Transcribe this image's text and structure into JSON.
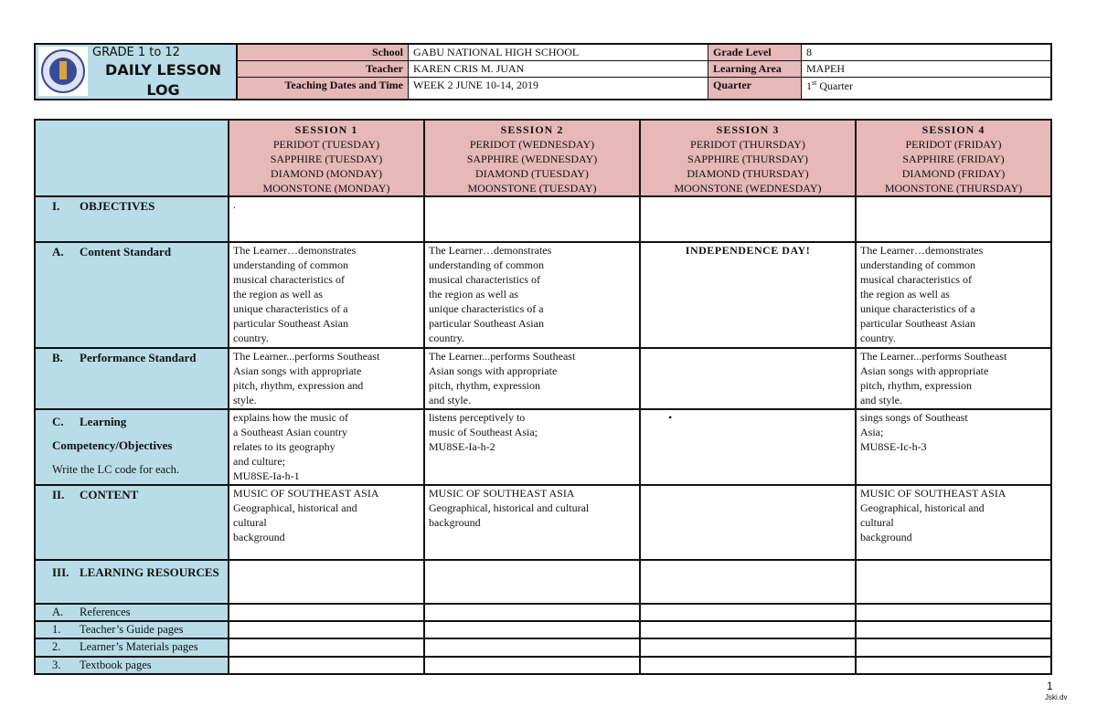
{
  "header": {
    "grade_range": "GRADE 1 to 12",
    "title": "DAILY LESSON LOG",
    "school_label": "School",
    "school": "GABU NATIONAL HIGH SCHOOL",
    "teacher_label": "Teacher",
    "teacher": "KAREN CRIS M. JUAN",
    "dates_label": "Teaching Dates and Time",
    "dates": "WEEK 2 JUNE 10-14, 2019",
    "grade_level_label": "Grade Level",
    "grade_level": "8",
    "learning_area_label": "Learning Area",
    "learning_area": "MAPEH",
    "quarter_label": "Quarter",
    "quarter_num": "1",
    "quarter_sup": "st",
    "quarter_text": " Quarter"
  },
  "sessions": [
    {
      "title": "SESSION 1",
      "schedule": "PERIDOT (TUESDAY)\nSAPPHIRE (TUESDAY)\nDIAMOND (MONDAY)\nMOONSTONE (MONDAY)"
    },
    {
      "title": "SESSION 2",
      "schedule": "PERIDOT (WEDNESDAY)\nSAPPHIRE (WEDNESDAY)\nDIAMOND (TUESDAY)\nMOONSTONE (TUESDAY)"
    },
    {
      "title": "SESSION 3",
      "schedule": "PERIDOT (THURSDAY)\nSAPPHIRE (THURSDAY)\nDIAMOND (THURSDAY)\nMOONSTONE (WEDNESDAY)"
    },
    {
      "title": "SESSION 4",
      "schedule": "PERIDOT (FRIDAY)\nSAPPHIRE (FRIDAY)\nDIAMOND (FRIDAY)\nMOONSTONE (THURSDAY)"
    }
  ],
  "rows": [
    {
      "num": "I.",
      "label": "OBJECTIVES",
      "cells": [
        ".",
        "",
        "",
        ""
      ]
    },
    {
      "num": "A.",
      "label": "Content Standard",
      "cells": [
        "The Learner…demonstrates\nunderstanding of common\nmusical characteristics of\nthe region as well as\nunique characteristics of a\nparticular Southeast Asian\ncountry.",
        "The Learner…demonstrates\nunderstanding of common\nmusical characteristics of\nthe region as well as\nunique characteristics of a\nparticular Southeast Asian\ncountry.",
        "INDEPENDENCE DAY!",
        "The Learner…demonstrates\nunderstanding of common\nmusical characteristics of\nthe region as well as\nunique characteristics of a\nparticular Southeast Asian\ncountry."
      ]
    },
    {
      "num": "B.",
      "label": "Performance Standard",
      "cells": [
        "The Learner...performs Southeast\n Asian songs with  appropriate\npitch, rhythm, expression and\nstyle.",
        "The Learner...performs Southeast\n Asian songs with  appropriate\npitch, rhythm, expression\nand style.",
        "",
        "The Learner...performs Southeast\n Asian songs with  appropriate\npitch, rhythm, expression\nand style."
      ]
    },
    {
      "num": "C.",
      "label": "Learning Competency/Objectives",
      "note": "Write the LC code for each.",
      "cells": [
        "explains how the music of\na Southeast Asian country\nrelates to its geography\nand culture;\nMU8SE-Ia-h-1",
        "listens perceptively to\nmusic of Southeast Asia;\nMU8SE-Ia-h-2",
        "•",
        "sings songs of Southeast\nAsia;\nMU8SE-Ic-h-3"
      ]
    },
    {
      "num": "II.",
      "label": "CONTENT",
      "cells": [
        "MUSIC OF SOUTHEAST ASIA\nGeographical, historical and\n        cultural\nbackground",
        "MUSIC OF SOUTHEAST ASIA\nGeographical, historical and cultural\nbackground",
        "",
        "MUSIC OF SOUTHEAST ASIA\nGeographical, historical and\n        cultural\nbackground"
      ]
    },
    {
      "num": "III.",
      "label": "LEARNING RESOURCES",
      "cells": [
        "",
        "",
        "",
        ""
      ]
    },
    {
      "num": "A.",
      "label": "References",
      "cells": [
        "",
        "",
        "",
        ""
      ]
    },
    {
      "num": "1.",
      "label": "Teacher’s Guide pages",
      "cells": [
        "",
        "",
        "",
        ""
      ]
    },
    {
      "num": "2.",
      "label": "Learner’s Materials pages",
      "cells": [
        "",
        "",
        "",
        ""
      ]
    },
    {
      "num": "3.",
      "label": "Textbook pages",
      "cells": [
        "",
        "",
        "",
        ""
      ]
    }
  ],
  "footer": {
    "page": "1",
    "watermark": "Jski.dv"
  },
  "colors": {
    "blue": "#b8dde8",
    "pink": "#e6b8b7"
  }
}
